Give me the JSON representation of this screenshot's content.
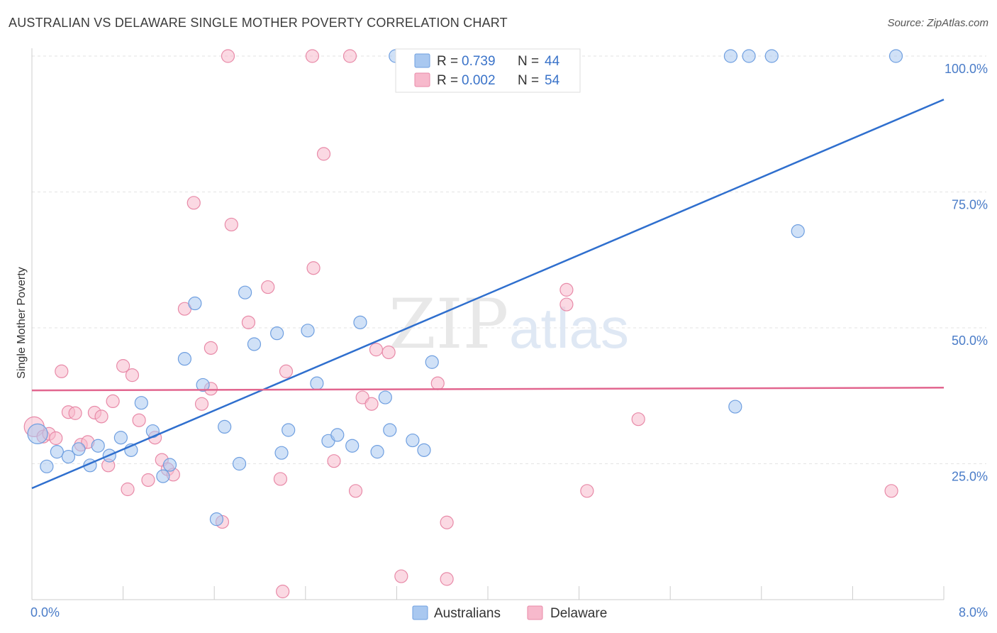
{
  "header": {
    "title": "AUSTRALIAN VS DELAWARE SINGLE MOTHER POVERTY CORRELATION CHART",
    "source": "Source: ZipAtlas.com"
  },
  "watermark": {
    "zip": "ZIP",
    "atlas": "atlas"
  },
  "legend_stats": {
    "r_label": "R =",
    "n_label": "N =",
    "rows": [
      {
        "r": "0.739",
        "n": "44",
        "color": "#a9c8f0",
        "stroke": "#6f9fe0"
      },
      {
        "r": "0.002",
        "n": "54",
        "color": "#f7b9cc",
        "stroke": "#e88aa8"
      }
    ]
  },
  "chart_data": {
    "type": "scatter",
    "title": "AUSTRALIAN VS DELAWARE SINGLE MOTHER POVERTY CORRELATION CHART",
    "xlabel": "",
    "ylabel": "Single Mother Poverty",
    "xlim": [
      0,
      8
    ],
    "ylim": [
      0,
      100
    ],
    "x_tick_labels": [
      {
        "value": 0,
        "label": "0.0%"
      },
      {
        "value": 8,
        "label": "8.0%"
      }
    ],
    "y_tick_labels": [
      {
        "value": 25,
        "label": "25.0%"
      },
      {
        "value": 50,
        "label": "50.0%"
      },
      {
        "value": 75,
        "label": "75.0%"
      },
      {
        "value": 100,
        "label": "100.0%"
      }
    ],
    "grid": true,
    "legend_position": "bottom-center",
    "series": [
      {
        "name": "Australians",
        "color": "#a9c8f0",
        "stroke": "#6f9fe0",
        "line_color": "#2f6fce",
        "trend": [
          [
            0,
            20.5
          ],
          [
            8,
            92
          ]
        ],
        "points": [
          [
            0.05,
            30.5
          ],
          [
            0.13,
            24.5
          ],
          [
            0.22,
            27.2
          ],
          [
            0.32,
            26.3
          ],
          [
            0.41,
            27.7
          ],
          [
            0.51,
            24.7
          ],
          [
            0.58,
            28.3
          ],
          [
            0.68,
            26.5
          ],
          [
            0.78,
            29.8
          ],
          [
            0.87,
            27.5
          ],
          [
            0.96,
            36.2
          ],
          [
            1.06,
            31.0
          ],
          [
            1.15,
            22.7
          ],
          [
            1.21,
            24.8
          ],
          [
            1.34,
            44.3
          ],
          [
            1.43,
            54.5
          ],
          [
            1.5,
            39.5
          ],
          [
            1.62,
            14.8
          ],
          [
            1.69,
            31.8
          ],
          [
            1.82,
            25.0
          ],
          [
            1.87,
            56.5
          ],
          [
            1.95,
            47.0
          ],
          [
            2.15,
            49.0
          ],
          [
            2.19,
            27.0
          ],
          [
            2.25,
            31.2
          ],
          [
            2.42,
            49.5
          ],
          [
            2.5,
            39.8
          ],
          [
            2.6,
            29.2
          ],
          [
            2.68,
            30.3
          ],
          [
            2.81,
            28.3
          ],
          [
            2.88,
            51.0
          ],
          [
            3.03,
            27.2
          ],
          [
            3.1,
            37.2
          ],
          [
            3.14,
            31.2
          ],
          [
            3.19,
            100
          ],
          [
            3.34,
            29.3
          ],
          [
            3.44,
            27.5
          ],
          [
            3.51,
            43.7
          ],
          [
            6.17,
            35.5
          ],
          [
            6.13,
            100
          ],
          [
            6.29,
            100
          ],
          [
            6.49,
            100
          ],
          [
            6.72,
            67.8
          ],
          [
            7.58,
            100
          ]
        ]
      },
      {
        "name": "Delaware",
        "color": "#f7b9cc",
        "stroke": "#e88aa8",
        "line_color": "#e2668f",
        "trend": [
          [
            0,
            38.5
          ],
          [
            8,
            39.0
          ]
        ],
        "points": [
          [
            0.02,
            31.8
          ],
          [
            0.1,
            30.0
          ],
          [
            0.15,
            30.5
          ],
          [
            0.21,
            29.7
          ],
          [
            0.26,
            42.0
          ],
          [
            0.32,
            34.5
          ],
          [
            0.38,
            34.3
          ],
          [
            0.43,
            28.5
          ],
          [
            0.49,
            29.0
          ],
          [
            0.55,
            34.4
          ],
          [
            0.61,
            33.7
          ],
          [
            0.67,
            24.7
          ],
          [
            0.71,
            36.5
          ],
          [
            0.8,
            43.0
          ],
          [
            0.84,
            20.3
          ],
          [
            0.88,
            41.3
          ],
          [
            0.94,
            33.0
          ],
          [
            1.02,
            22.0
          ],
          [
            1.08,
            29.8
          ],
          [
            1.14,
            25.7
          ],
          [
            1.19,
            24.0
          ],
          [
            1.24,
            23.0
          ],
          [
            1.34,
            53.5
          ],
          [
            1.42,
            73.0
          ],
          [
            1.49,
            36.0
          ],
          [
            1.57,
            46.3
          ],
          [
            1.57,
            38.8
          ],
          [
            1.67,
            14.3
          ],
          [
            1.72,
            100
          ],
          [
            1.75,
            69.0
          ],
          [
            1.9,
            51.0
          ],
          [
            2.07,
            57.5
          ],
          [
            2.18,
            22.2
          ],
          [
            2.23,
            42.0
          ],
          [
            2.2,
            1.5
          ],
          [
            2.46,
            100
          ],
          [
            2.47,
            61.0
          ],
          [
            2.56,
            82.0
          ],
          [
            2.65,
            25.5
          ],
          [
            2.79,
            100
          ],
          [
            2.84,
            20.0
          ],
          [
            2.9,
            37.2
          ],
          [
            2.98,
            36.0
          ],
          [
            3.02,
            46.0
          ],
          [
            3.13,
            45.5
          ],
          [
            3.24,
            4.3
          ],
          [
            3.56,
            39.8
          ],
          [
            3.64,
            14.2
          ],
          [
            3.64,
            3.8
          ],
          [
            4.69,
            57.0
          ],
          [
            4.69,
            54.3
          ],
          [
            4.87,
            20.0
          ],
          [
            5.32,
            33.2
          ],
          [
            7.54,
            20.0
          ]
        ]
      }
    ]
  }
}
